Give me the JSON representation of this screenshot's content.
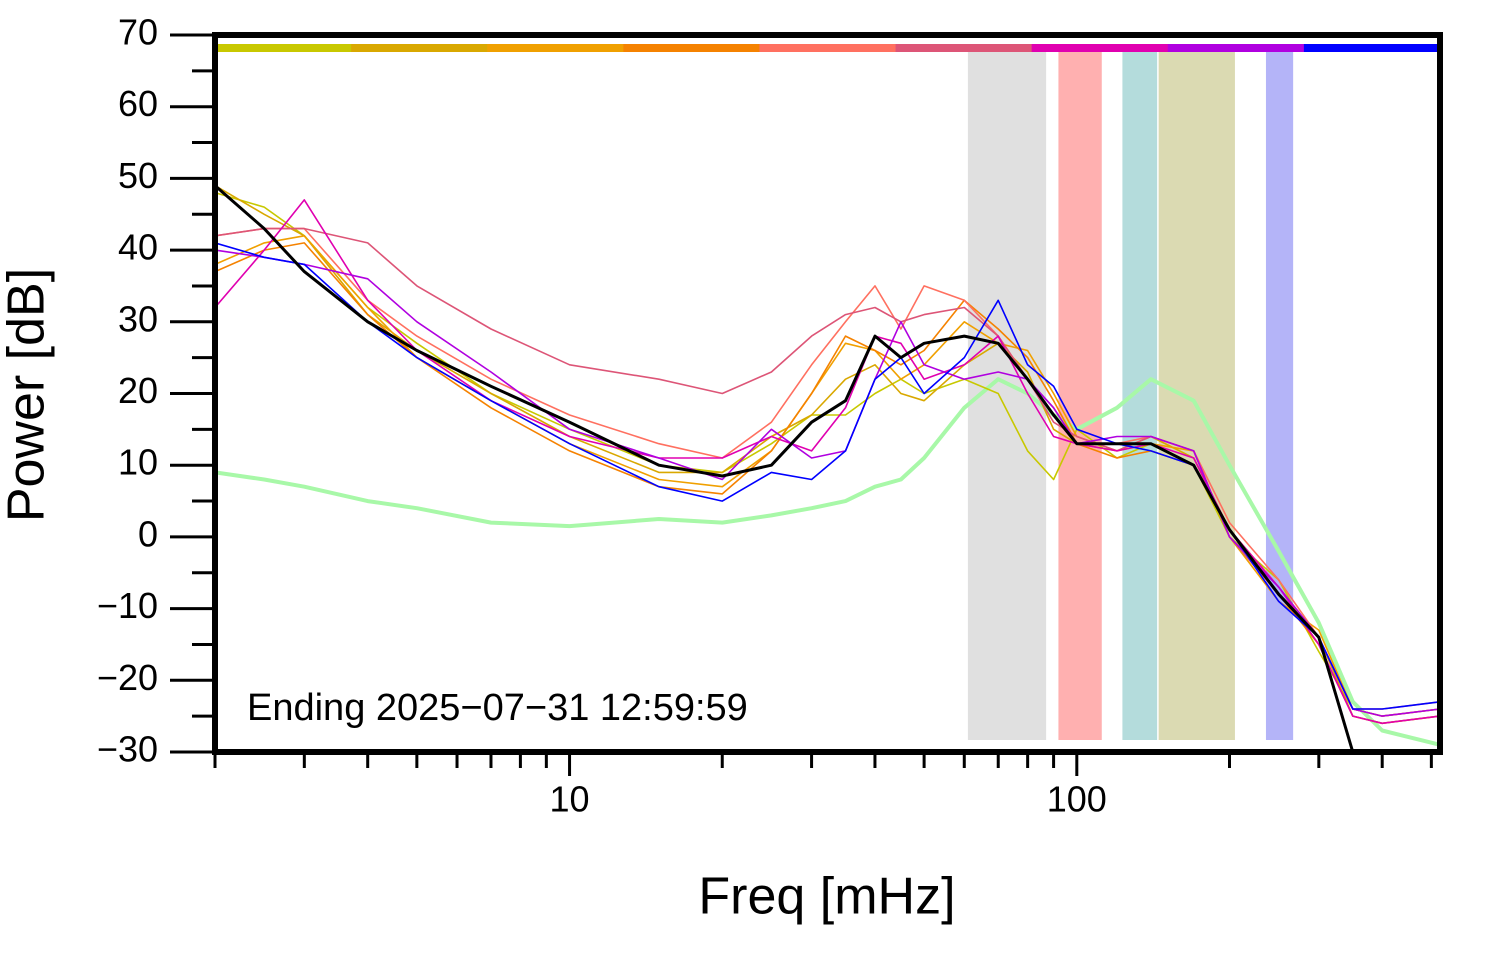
{
  "chart_data": {
    "type": "line",
    "xlabel": "Freq [mHz]",
    "ylabel": "Power [dB]",
    "annotation": "Ending 2025−07−31 12:59:59",
    "log_x": true,
    "xlim": [
      2,
      520
    ],
    "ylim": [
      -30,
      70
    ],
    "xticks": [
      10,
      100
    ],
    "xminorticks": [
      2,
      3,
      4,
      5,
      6,
      7,
      8,
      9,
      20,
      30,
      40,
      50,
      60,
      70,
      80,
      90,
      200,
      300,
      400,
      500
    ],
    "yticks": [
      {
        "value": -30,
        "label": "−30"
      },
      {
        "value": -20,
        "label": "−20"
      },
      {
        "value": -10,
        "label": "−10"
      },
      0,
      10,
      20,
      30,
      40,
      50,
      60,
      70
    ],
    "yminorticks": [
      -25,
      -15,
      -5,
      5,
      15,
      25,
      35,
      45,
      55,
      65
    ],
    "bands": [
      {
        "xlim": [
          61,
          87
        ],
        "color": "#e0e0e0"
      },
      {
        "xlim": [
          92,
          112
        ],
        "color": "#ffb0b0"
      },
      {
        "xlim": [
          123,
          144
        ],
        "color": "#b4dcdc"
      },
      {
        "xlim": [
          145,
          205
        ],
        "color": "#dbdab2"
      },
      {
        "xlim": [
          236,
          267
        ],
        "color": "#b4b4f8"
      }
    ],
    "x": [
      2,
      2.5,
      3,
      4,
      5,
      7,
      10,
      15,
      20,
      25,
      30,
      35,
      40,
      45,
      50,
      60,
      70,
      80,
      90,
      100,
      120,
      140,
      170,
      200,
      250,
      300,
      350,
      400,
      520
    ],
    "series": [
      {
        "color": "#c8c800",
        "values": [
          48,
          46,
          42,
          32,
          27,
          20,
          15,
          10,
          9,
          13,
          17,
          17,
          20,
          22,
          20,
          22,
          20,
          12,
          8,
          15,
          11,
          13,
          10,
          0,
          -6,
          -16,
          -24,
          -25,
          -24
        ]
      },
      {
        "color": "#d9a800",
        "values": [
          49,
          45,
          42,
          31,
          26,
          20,
          14,
          9,
          9,
          14,
          17,
          22,
          24,
          20,
          19,
          24,
          27,
          23,
          15,
          13,
          12,
          14,
          11,
          1,
          -7,
          -14,
          -25,
          -26,
          -25
        ]
      },
      {
        "color": "#f0a000",
        "values": [
          38,
          41,
          42,
          32,
          25,
          19,
          13,
          8,
          7,
          12,
          20,
          27,
          26,
          22,
          24,
          30,
          27,
          26,
          20,
          14,
          12,
          13,
          12,
          0,
          -9,
          -13,
          -24,
          -25,
          -24
        ]
      },
      {
        "color": "#f58200",
        "values": [
          37,
          40,
          41,
          31,
          25,
          18,
          12,
          7,
          6,
          12,
          20,
          28,
          26,
          24,
          26,
          33,
          29,
          25,
          19,
          13,
          11,
          12,
          10,
          1,
          -8,
          -15,
          -25,
          -26,
          -25
        ]
      },
      {
        "color": "#ff7060",
        "values": [
          42,
          43,
          43,
          33,
          28,
          22,
          17,
          13,
          11,
          16,
          24,
          30,
          35,
          29,
          35,
          33,
          28,
          22,
          18,
          13,
          13,
          14,
          12,
          2,
          -6,
          -14,
          -24,
          -25,
          -24
        ]
      },
      {
        "color": "#dd5577",
        "values": [
          42,
          43,
          43,
          41,
          35,
          29,
          24,
          22,
          20,
          23,
          28,
          31,
          32,
          30,
          31,
          32,
          28,
          22,
          16,
          14,
          12,
          14,
          12,
          0,
          -8,
          -14,
          -24,
          -24,
          -23
        ]
      },
      {
        "color": "#e000b0",
        "values": [
          32,
          40,
          47,
          33,
          26,
          19,
          14,
          11,
          11,
          14,
          12,
          18,
          28,
          27,
          22,
          24,
          28,
          20,
          14,
          13,
          12,
          13,
          11,
          1,
          -7,
          -15,
          -25,
          -26,
          -25
        ]
      },
      {
        "color": "#b000e0",
        "values": [
          40,
          39,
          38,
          36,
          30,
          23,
          15,
          11,
          8,
          15,
          11,
          12,
          22,
          30,
          24,
          22,
          23,
          22,
          18,
          13,
          14,
          14,
          12,
          0,
          -7,
          -14,
          -24,
          -25,
          -24
        ]
      },
      {
        "color": "#0000ff",
        "values": [
          41,
          39,
          38,
          30,
          25,
          19,
          13,
          7,
          5,
          9,
          8,
          12,
          22,
          25,
          20,
          25,
          33,
          24,
          21,
          15,
          13,
          12,
          10,
          1,
          -9,
          -14,
          -24,
          -24,
          -23
        ]
      }
    ],
    "reference": {
      "color": "#a8f8a8",
      "values": [
        9,
        8,
        7,
        5,
        4,
        2,
        1.5,
        2.5,
        2,
        3,
        4,
        5,
        7,
        8,
        11,
        18,
        22,
        20,
        17,
        15,
        18,
        22,
        19,
        10,
        -2,
        -12,
        -23,
        -27,
        -29
      ]
    },
    "mean": {
      "color": "#000000",
      "values": [
        49,
        43,
        37,
        30,
        26,
        21,
        16,
        10,
        8.5,
        10,
        16,
        19,
        28,
        25,
        27,
        28,
        27,
        22,
        17,
        13,
        13,
        13,
        10,
        1,
        -8,
        -14,
        -30,
        null,
        null
      ]
    }
  }
}
